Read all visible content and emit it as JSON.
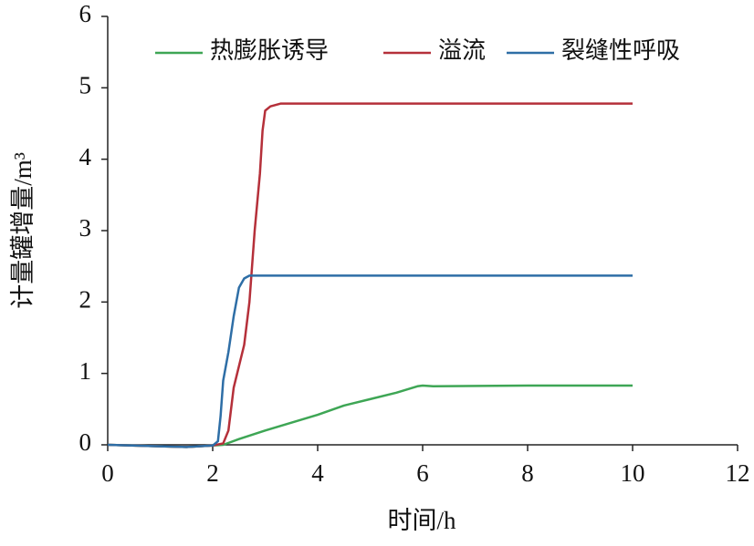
{
  "chart_data": {
    "type": "line",
    "xlabel": "时间/h",
    "ylabel": "计量罐增量/m³",
    "xlim": [
      0,
      12
    ],
    "xticks": [
      0,
      2,
      4,
      6,
      8,
      10,
      12
    ],
    "ylim": [
      0,
      6
    ],
    "yticks": [
      0,
      1,
      2,
      3,
      4,
      5,
      6
    ],
    "legend": "top",
    "series": [
      {
        "name": "热膨胀诱导",
        "color": "#3ea655",
        "x": [
          0,
          1,
          1.5,
          2,
          2.2,
          2.5,
          3,
          4,
          4.5,
          5,
          5.5,
          5.9,
          6,
          6.2,
          8,
          10
        ],
        "values": [
          0,
          -0.02,
          -0.03,
          -0.01,
          0,
          0.08,
          0.2,
          0.42,
          0.55,
          0.64,
          0.73,
          0.82,
          0.83,
          0.82,
          0.83,
          0.83
        ]
      },
      {
        "name": "溢流",
        "color": "#b5303a",
        "x": [
          0,
          1,
          1.5,
          2,
          2.2,
          2.3,
          2.4,
          2.5,
          2.6,
          2.7,
          2.8,
          2.9,
          2.95,
          3,
          3.1,
          3.3,
          4,
          10
        ],
        "values": [
          0,
          -0.02,
          -0.03,
          -0.01,
          0.02,
          0.2,
          0.8,
          1.1,
          1.4,
          2.0,
          3.0,
          3.8,
          4.4,
          4.68,
          4.74,
          4.78,
          4.78,
          4.78
        ]
      },
      {
        "name": "裂缝性呼吸",
        "color": "#2e6ea6",
        "x": [
          0,
          1,
          1.5,
          2,
          2.1,
          2.15,
          2.2,
          2.3,
          2.4,
          2.5,
          2.6,
          2.7,
          3,
          10
        ],
        "values": [
          0,
          -0.02,
          -0.03,
          -0.01,
          0.05,
          0.4,
          0.9,
          1.3,
          1.8,
          2.2,
          2.33,
          2.37,
          2.37,
          2.37
        ]
      }
    ]
  }
}
